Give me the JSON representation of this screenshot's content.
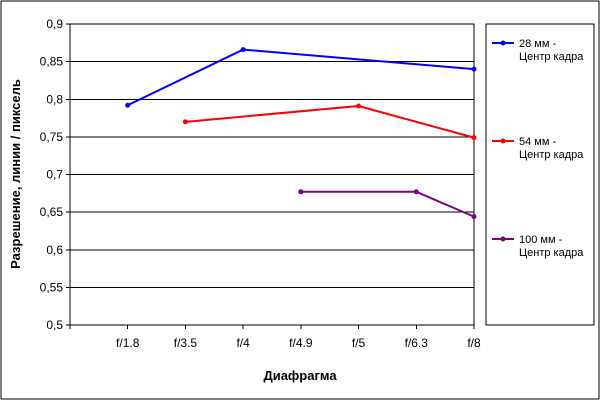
{
  "chart_data": {
    "type": "line",
    "title": "",
    "xlabel": "Диафрагма",
    "ylabel": "Разрешение, линии / пиксель",
    "categories": [
      "f/1.8",
      "f/3.5",
      "f/4",
      "f/4.9",
      "f/5",
      "f/6.3",
      "f/8"
    ],
    "ylim": [
      0.5,
      0.9
    ],
    "yticks": [
      "0,5",
      "0,55",
      "0,6",
      "0,65",
      "0,7",
      "0,75",
      "0,8",
      "0,85",
      "0,9"
    ],
    "grid": true,
    "legend_position": "right",
    "series": [
      {
        "name": "28 мм - Центр кадра",
        "legend_lines": [
          "28 мм -",
          "Центр кадра"
        ],
        "color": "#0000ff",
        "values": [
          0.792,
          null,
          0.866,
          null,
          null,
          null,
          0.84
        ]
      },
      {
        "name": "54 мм - Центр кадра",
        "legend_lines": [
          "54 мм -",
          "Центр кадра"
        ],
        "color": "#ff0000",
        "values": [
          null,
          0.77,
          null,
          null,
          0.791,
          null,
          0.749
        ]
      },
      {
        "name": "100 мм - Центр кадра",
        "legend_lines": [
          "100 мм -",
          "Центр кадра"
        ],
        "color": "#800080",
        "values": [
          null,
          null,
          null,
          0.677,
          null,
          0.677,
          0.644
        ]
      }
    ]
  }
}
